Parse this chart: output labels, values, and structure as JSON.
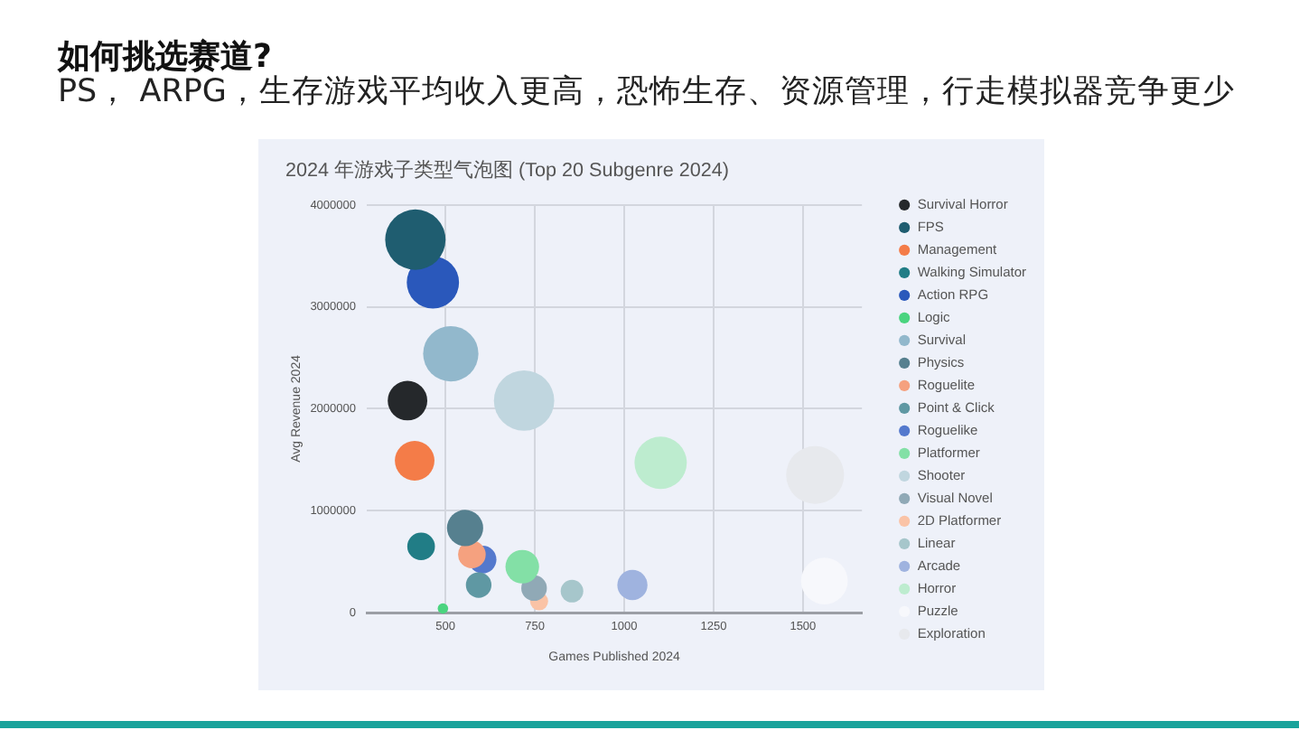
{
  "chart_data": {
    "type": "bubble",
    "title": "2024 年游戏子类型气泡图 (Top 20 Subgenre 2024)",
    "xlabel": "Games Published 2024",
    "ylabel": "Avg Revenue 2024",
    "annotations": [
      "如何挑选赛道?",
      "PS， ARPG，生存游戏平均收入更高，恐怖生存、资源管理，行走模拟器竞争更少"
    ],
    "xlim": [
      280,
      1665
    ],
    "xticks": [
      500,
      750,
      1000,
      1250,
      1500
    ],
    "ylim": [
      0,
      4000000
    ],
    "yticks": [
      0,
      1000000,
      2000000,
      3000000,
      4000000
    ],
    "grid": true,
    "legend": "right",
    "series": [
      {
        "name": "Survival Horror",
        "color": "#25282b",
        "x": [
          394
        ],
        "values": [
          2080000
        ],
        "sizes": [
          0.43
        ]
      },
      {
        "name": "FPS",
        "color": "#1f5d70",
        "x": [
          416
        ],
        "values": [
          3660000
        ],
        "sizes": [
          1
        ]
      },
      {
        "name": "Management",
        "color": "#f47c48",
        "x": [
          414
        ],
        "values": [
          1490000
        ],
        "sizes": [
          0.43
        ]
      },
      {
        "name": "Walking Simulator",
        "color": "#217d86",
        "x": [
          432
        ],
        "values": [
          650000
        ],
        "sizes": [
          0.21
        ]
      },
      {
        "name": "Action RPG",
        "color": "#2a58bb",
        "x": [
          465
        ],
        "values": [
          3240000
        ],
        "sizes": [
          0.75
        ]
      },
      {
        "name": "Logic",
        "color": "#4ad47f",
        "x": [
          493
        ],
        "values": [
          40000
        ],
        "sizes": [
          0.03
        ]
      },
      {
        "name": "Survival",
        "color": "#92b8cc",
        "x": [
          515
        ],
        "values": [
          2540000
        ],
        "sizes": [
          0.84
        ]
      },
      {
        "name": "Physics",
        "color": "#56808f",
        "x": [
          555
        ],
        "values": [
          830000
        ],
        "sizes": [
          0.36
        ]
      },
      {
        "name": "Roguelite",
        "color": "#f5a17f",
        "x": [
          574
        ],
        "values": [
          570000
        ],
        "sizes": [
          0.21
        ]
      },
      {
        "name": "Point & Click",
        "color": "#5f98a3",
        "x": [
          593
        ],
        "values": [
          270000
        ],
        "sizes": [
          0.18
        ]
      },
      {
        "name": "Roguelike",
        "color": "#5479cd",
        "x": [
          604
        ],
        "values": [
          520000
        ],
        "sizes": [
          0.21
        ]
      },
      {
        "name": "Platformer",
        "color": "#83e0a6",
        "x": [
          715
        ],
        "values": [
          450000
        ],
        "sizes": [
          0.31
        ]
      },
      {
        "name": "Shooter",
        "color": "#c0d6df",
        "x": [
          720
        ],
        "values": [
          2080000
        ],
        "sizes": [
          1
        ]
      },
      {
        "name": "Visual Novel",
        "color": "#90a9b6",
        "x": [
          748
        ],
        "values": [
          240000
        ],
        "sizes": [
          0.18
        ]
      },
      {
        "name": "2D Platformer",
        "color": "#fac3a6",
        "x": [
          762
        ],
        "values": [
          110000
        ],
        "sizes": [
          0.09
        ]
      },
      {
        "name": "Linear",
        "color": "#a6c6cb",
        "x": [
          854
        ],
        "values": [
          210000
        ],
        "sizes": [
          0.14
        ]
      },
      {
        "name": "Arcade",
        "color": "#9fb3df",
        "x": [
          1023
        ],
        "values": [
          270000
        ],
        "sizes": [
          0.25
        ]
      },
      {
        "name": "Horror",
        "color": "#bdeccf",
        "x": [
          1102
        ],
        "values": [
          1470000
        ],
        "sizes": [
          0.75
        ]
      },
      {
        "name": "Puzzle",
        "color": "#f7f8fc",
        "x": [
          1560
        ],
        "values": [
          310000
        ],
        "sizes": [
          0.6
        ]
      },
      {
        "name": "Exploration",
        "color": "#e7e9ed",
        "x": [
          1534
        ],
        "values": [
          1350000
        ],
        "sizes": [
          0.92
        ]
      }
    ]
  }
}
